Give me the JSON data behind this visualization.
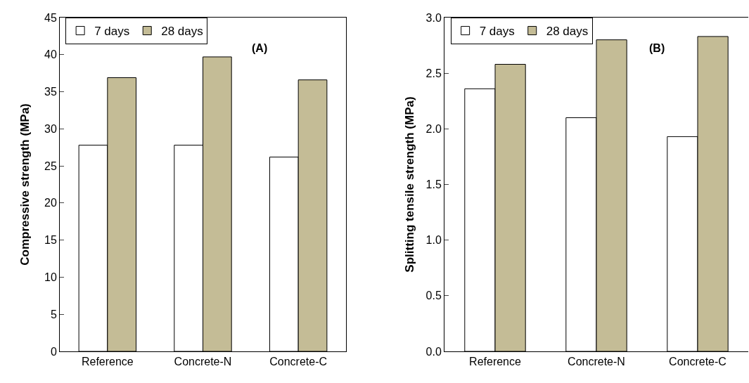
{
  "chart_data": [
    {
      "type": "bar",
      "ylabel": "Compressive strength (MPa)",
      "annotations": [
        "(A)"
      ],
      "categories": [
        "Reference",
        "Concrete-N",
        "Concrete-C"
      ],
      "series": [
        {
          "name": "7 days",
          "color": "#ffffff",
          "values": [
            27.8,
            27.8,
            26.2
          ]
        },
        {
          "name": "28 days",
          "color": "#c4bc96",
          "values": [
            36.9,
            39.7,
            36.6
          ]
        }
      ],
      "ylim": [
        0,
        45
      ],
      "yticks": [
        0,
        5,
        10,
        15,
        20,
        25,
        30,
        35,
        40,
        45
      ],
      "grid": false,
      "legend": "top left"
    },
    {
      "type": "bar",
      "ylabel": "Splitting tensile strength (MPa)",
      "annotations": [
        "(B)"
      ],
      "categories": [
        "Reference",
        "Concrete-N",
        "Concrete-C"
      ],
      "series": [
        {
          "name": "7 days",
          "color": "#ffffff",
          "values": [
            2.36,
            2.1,
            1.93
          ]
        },
        {
          "name": "28 days",
          "color": "#c4bc96",
          "values": [
            2.58,
            2.8,
            2.83
          ]
        }
      ],
      "ylim": [
        0,
        3
      ],
      "yticks": [
        {
          "value": 0,
          "label": "0.0"
        },
        {
          "value": 0.5,
          "label": "0.5"
        },
        {
          "value": 1,
          "label": "1.0"
        },
        {
          "value": 1.5,
          "label": "1.5"
        },
        {
          "value": 2,
          "label": "2.0"
        },
        {
          "value": 2.5,
          "label": "2.5"
        },
        {
          "value": 3,
          "label": "3.0"
        }
      ],
      "grid": false,
      "legend": "top left"
    }
  ]
}
